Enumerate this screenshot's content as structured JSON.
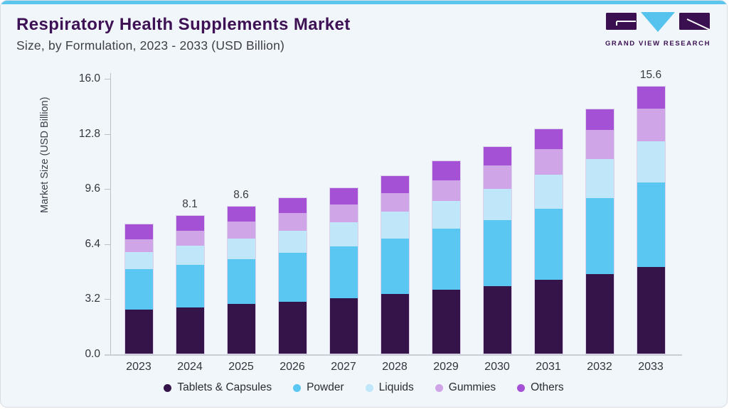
{
  "header": {
    "title": "Respiratory Health Supplements Market",
    "subtitle": "Size, by Formulation, 2023 - 2033 (USD Billion)",
    "logo_text": "GRAND VIEW RESEARCH"
  },
  "colors": {
    "top_strip": "#5ac6ee",
    "card_bg": "#f0f6fa",
    "card_border": "#d7dde3",
    "title": "#3e1155",
    "subtitle": "#3f4046",
    "logo_purple": "#3a1050",
    "logo_cyan": "#56c2ee",
    "axis_line": "#b9c0c8",
    "baseline": "#c9cfd5",
    "tick_text": "#33343d",
    "bar_label_text": "#3a3b42",
    "legend_text": "#2b2c34",
    "y_axis_title_text": "#3c414b",
    "bar_outline": "#cdb9e1"
  },
  "chart_data": {
    "type": "bar",
    "stacked": true,
    "title": "Respiratory Health Supplements Market Size, by Formulation, 2023 - 2033 (USD Billion)",
    "xlabel": "",
    "ylabel": "Market Size (USD Billion)",
    "ylim": [
      0,
      16
    ],
    "yticks": [
      0.0,
      3.2,
      6.4,
      9.6,
      12.8,
      16.0
    ],
    "grid": false,
    "legend_position": "bottom",
    "categories": [
      "2023",
      "2024",
      "2025",
      "2026",
      "2027",
      "2028",
      "2029",
      "2030",
      "2031",
      "2032",
      "2033"
    ],
    "series": [
      {
        "name": "Tablets & Capsules",
        "color": "#341449",
        "values": [
          2.6,
          2.7,
          2.9,
          3.05,
          3.25,
          3.5,
          3.75,
          3.95,
          4.3,
          4.65,
          5.05
        ]
      },
      {
        "name": "Powder",
        "color": "#5ac7f3",
        "values": [
          2.35,
          2.5,
          2.65,
          2.85,
          3.05,
          3.25,
          3.55,
          3.85,
          4.15,
          4.45,
          4.95
        ]
      },
      {
        "name": "Liquids",
        "color": "#bfe6f9",
        "values": [
          1.0,
          1.15,
          1.2,
          1.3,
          1.4,
          1.55,
          1.65,
          1.85,
          2.0,
          2.25,
          2.4
        ]
      },
      {
        "name": "Gummies",
        "color": "#d0a5e8",
        "values": [
          0.75,
          0.85,
          1.0,
          1.05,
          1.05,
          1.1,
          1.2,
          1.35,
          1.5,
          1.7,
          1.9
        ]
      },
      {
        "name": "Others",
        "color": "#a551d6",
        "values": [
          0.9,
          0.9,
          0.85,
          0.85,
          0.95,
          1.0,
          1.1,
          1.1,
          1.15,
          1.2,
          1.3
        ]
      }
    ],
    "totals": [
      7.6,
      8.1,
      8.6,
      9.1,
      9.7,
      10.4,
      11.25,
      12.1,
      13.1,
      14.25,
      15.6
    ],
    "bar_labels": {
      "2024": "8.1",
      "2025": "8.6",
      "2033": "15.6"
    }
  }
}
